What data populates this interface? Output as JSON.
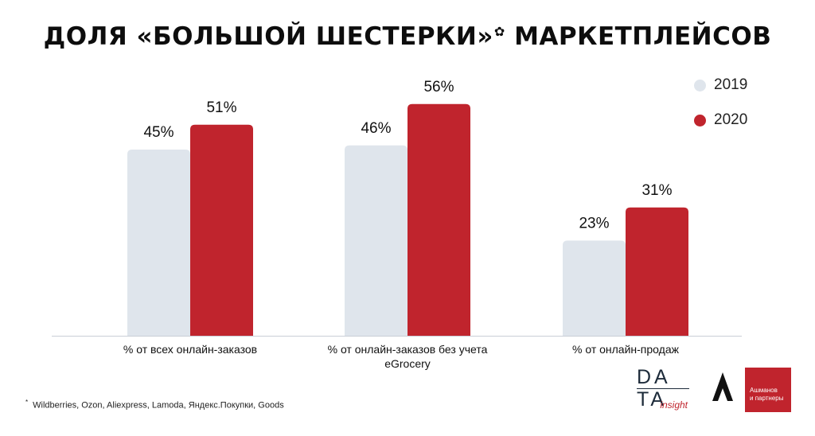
{
  "title": "ДОЛЯ «БОЛЬШОЙ ШЕСТЕРКИ»",
  "title_mark": "✿",
  "title_tail": "МАРКЕТПЛЕЙСОВ",
  "legend": [
    {
      "label": "2019",
      "color": "#dfe5ec"
    },
    {
      "label": "2020",
      "color": "#c0242d"
    }
  ],
  "chart_data": {
    "type": "bar",
    "categories": [
      [
        "% от всех онлайн-заказов"
      ],
      [
        "% от онлайн-заказов без учета",
        "eGrocery"
      ],
      [
        "% от онлайн-продаж"
      ]
    ],
    "series": [
      {
        "name": "2019",
        "values": [
          45,
          46,
          23
        ],
        "labels": [
          "45%",
          "46%",
          "23%"
        ],
        "color": "#dfe5ec"
      },
      {
        "name": "2020",
        "values": [
          51,
          56,
          31
        ],
        "labels": [
          "51%",
          "56%",
          "31%"
        ],
        "color": "#c0242d"
      }
    ],
    "ylim": [
      0,
      100
    ],
    "grid": false,
    "legend_position": "top-right"
  },
  "footnote_mark": "*",
  "footnote": "Wildberries, Ozon, Aliexpress, Lamoda, Яндекс.Покупки, Goods",
  "logos": {
    "data_line1": "DA",
    "data_line2": "TA",
    "data_sub": "insight",
    "ashmanov_line1": "Ашманов",
    "ashmanov_line2": "и партнеры"
  }
}
